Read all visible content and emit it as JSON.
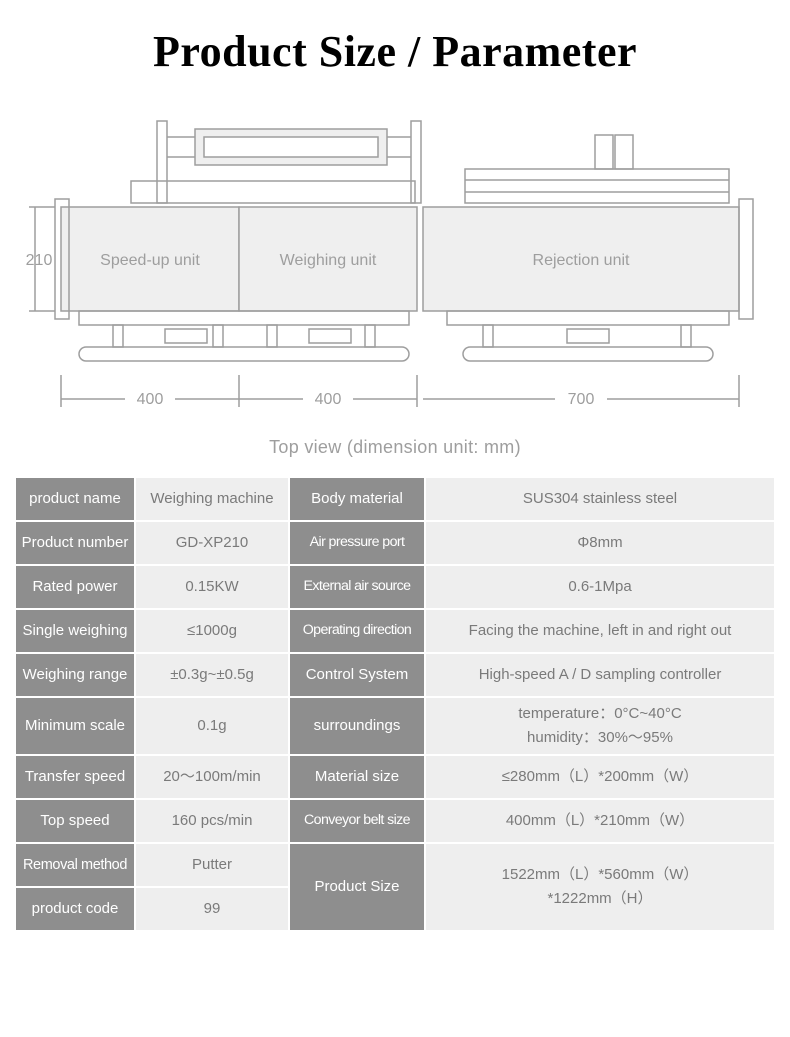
{
  "title": "Product Size / Parameter",
  "caption": "Top view (dimension unit: mm)",
  "diagram": {
    "stroke": "#9e9e9e",
    "fill_light": "#efefef",
    "label_color": "#9e9e9e",
    "height_label": "210",
    "unit_labels": [
      "Speed-up unit",
      "Weighing unit",
      "Rejection unit"
    ],
    "bottom_dims": [
      "400",
      "400",
      "700"
    ]
  },
  "specs": {
    "rows": [
      {
        "l": "product name",
        "lv": "Weighing machine",
        "r": "Body material",
        "rv": "SUS304 stainless steel"
      },
      {
        "l": "Product number",
        "lv": "GD-XP210",
        "r": "Air pressure port",
        "rv": "Φ8mm"
      },
      {
        "l": "Rated power",
        "lv": "0.15KW",
        "r": "External air source",
        "rv": "0.6-1Mpa"
      },
      {
        "l": "Single weighing",
        "lv": "≤1000g",
        "r": "Operating direction",
        "rv": "Facing the machine, left in and right out"
      },
      {
        "l": "Weighing range",
        "lv": "±0.3g~±0.5g",
        "r": "Control System",
        "rv": "High-speed A / D sampling controller"
      },
      {
        "l": "Minimum scale",
        "lv": "0.1g",
        "r": "surroundings",
        "rv": "temperature：0°C~40°C\nhumidity：30%～95%"
      },
      {
        "l": "Transfer speed",
        "lv": "20～100m/min",
        "r": "Material size",
        "rv": "≤280mm（L）*200mm（W）"
      },
      {
        "l": "Top speed",
        "lv": "160  pcs/min",
        "r": "Conveyor belt size",
        "rv": "400mm（L）*210mm（W）"
      },
      {
        "l": "Removal method",
        "lv": "Putter",
        "r": "Product Size",
        "rv": "1522mm（L）*560mm（W）\n*1222mm（H）"
      },
      {
        "l": "product code",
        "lv": "99",
        "r": "",
        "rv": ""
      }
    ]
  }
}
